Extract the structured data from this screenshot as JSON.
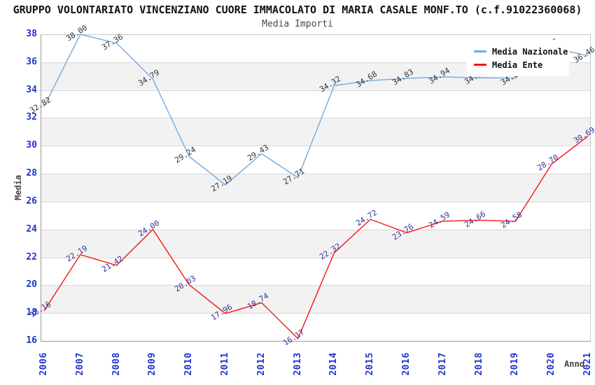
{
  "title": "GRUPPO VOLONTARIATO VINCENZIANO CUORE IMMACOLATO DI MARIA CASALE MONF.TO (c.f.91022360068)",
  "subtitle": "Media Importi",
  "chart_data": {
    "type": "line",
    "title": "Media Importi",
    "xlabel": "Anno",
    "ylabel": "Media",
    "x": [
      2006,
      2007,
      2008,
      2009,
      2010,
      2011,
      2012,
      2013,
      2014,
      2015,
      2016,
      2017,
      2018,
      2019,
      2020,
      2021
    ],
    "series": [
      {
        "name": "Media Nazionale",
        "color": "#74aade",
        "label_color": "#333333",
        "values": [
          32.82,
          38.0,
          37.36,
          34.79,
          29.24,
          27.19,
          29.43,
          27.71,
          34.32,
          34.68,
          34.83,
          34.94,
          34.88,
          34.85,
          37.05,
          36.46
        ]
      },
      {
        "name": "Media Ente",
        "color": "#f81414",
        "label_color": "#333399",
        "values": [
          18.16,
          22.19,
          21.42,
          24.0,
          20.03,
          17.96,
          18.74,
          16.17,
          22.32,
          24.72,
          23.76,
          24.59,
          24.66,
          24.58,
          28.7,
          30.69
        ]
      }
    ],
    "ylim": [
      16,
      38
    ],
    "ytick_step": 2,
    "grid": true,
    "band_color": "#f2f2f2",
    "tick_color": "#2233cc",
    "legend_position": "top-right"
  }
}
